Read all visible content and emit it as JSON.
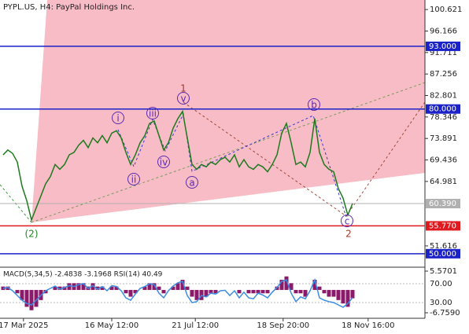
{
  "chart_data": {
    "type": "line",
    "title": "PYPL.US, H4:  PayPal Holdings Inc.",
    "line_color": "#1e7a1e",
    "xlim": [
      -0.667,
      89.333
    ],
    "xticks": [
      {
        "value": 4.3,
        "label": "17 Mar 2025"
      },
      {
        "value": 23,
        "label": "16 May 12:00"
      },
      {
        "value": 40.7,
        "label": "21 Jul 12:00"
      },
      {
        "value": 59.3,
        "label": "18 Sep 20:00"
      },
      {
        "value": 77.3,
        "label": "18 Nov 16:00"
      }
    ],
    "ylim": [
      47.2,
      102.6
    ],
    "yticks": [
      {
        "value": 100.621,
        "label": "100.621"
      },
      {
        "value": 96.166,
        "label": "96.166"
      },
      {
        "value": 91.711,
        "label": "91.711"
      },
      {
        "value": 87.256,
        "label": "87.256"
      },
      {
        "value": 82.801,
        "label": "82.801"
      },
      {
        "value": 78.346,
        "label": "78.346"
      },
      {
        "value": 73.891,
        "label": "73.891"
      },
      {
        "value": 69.436,
        "label": "69.436"
      },
      {
        "value": 64.981,
        "label": "64.981"
      },
      {
        "value": 51.616,
        "label": "51.616"
      }
    ],
    "values": [
      70.5,
      71.5,
      70.8,
      69,
      64,
      61,
      57,
      59.5,
      62,
      64.5,
      66,
      68.5,
      67.5,
      68.5,
      70.5,
      71,
      72.5,
      73.5,
      72,
      74,
      73,
      74.5,
      73,
      75,
      75.5,
      74,
      71,
      68.5,
      70.5,
      73,
      74.5,
      77,
      77.5,
      74.5,
      71.5,
      73,
      76,
      78,
      79.5,
      74,
      68.5,
      67.5,
      68.5,
      68,
      69,
      68.5,
      69.5,
      70,
      69,
      70.5,
      68,
      69.5,
      68,
      67.5,
      68.5,
      68,
      67,
      68.5,
      70.5,
      75,
      77,
      73,
      68.5,
      69,
      68,
      71,
      78,
      71,
      68.5,
      67.5,
      67,
      63.5,
      61.5,
      58,
      60.4
    ],
    "levels": [
      {
        "value": 93.0,
        "label": "93.000",
        "color": "#1a22c8"
      },
      {
        "value": 80.0,
        "label": "80.000",
        "color": "#1a22c8"
      },
      {
        "value": 60.39,
        "label": "60.390",
        "color": "#b0b0b0"
      },
      {
        "value": 55.77,
        "label": "55.770",
        "color": "#e0191e"
      },
      {
        "value": 50.0,
        "label": "50.000",
        "color": "#1a22c8"
      }
    ],
    "wave_labels": [
      "(2)",
      "i",
      "ii",
      "iii",
      "iv",
      "v",
      "1",
      "a",
      "b",
      "c",
      "2"
    ],
    "indicator": {
      "title": "MACD(5,34,5) -2.4838 -3.1968 RSI(14) 40.49",
      "macd_color": "#8b1a6b",
      "rsi_color": "#3a8de0",
      "macd_ylim": [
        -8.39,
        6.73
      ],
      "macd_ticks": [
        {
          "value": 5.5701,
          "label": "5.5701"
        },
        {
          "value": -6.759,
          "label": "-6.7590"
        }
      ],
      "rsi_ylim": [
        -3.3,
        105
      ],
      "rsi_ticks": [
        {
          "value": 70,
          "label": "70.00"
        },
        {
          "value": 30,
          "label": "30.00"
        }
      ],
      "macd": [
        1,
        1,
        0,
        -1,
        -3,
        -5,
        -6,
        -5,
        -3,
        -1,
        0,
        1,
        1,
        1,
        2,
        2,
        2,
        2,
        1,
        2,
        1,
        1,
        0,
        1,
        1,
        0,
        -1,
        -2,
        -1,
        0,
        1,
        2,
        2,
        1,
        -1,
        0,
        1,
        2,
        3,
        1,
        -2,
        -3,
        -3,
        -2,
        -1,
        -1,
        0,
        0,
        0,
        0,
        -1,
        0,
        -1,
        -1,
        -1,
        -1,
        -1,
        0,
        1,
        3,
        4,
        2,
        -1,
        -1,
        -2,
        0,
        3,
        1,
        -1,
        -2,
        -2,
        -3,
        -4,
        -5,
        -2.4838
      ],
      "rsi": [
        60,
        62,
        55,
        45,
        35,
        28,
        25,
        35,
        45,
        55,
        60,
        65,
        58,
        62,
        66,
        64,
        68,
        70,
        60,
        66,
        58,
        64,
        55,
        66,
        64,
        55,
        40,
        35,
        48,
        60,
        64,
        70,
        68,
        50,
        40,
        55,
        65,
        72,
        75,
        45,
        30,
        32,
        45,
        42,
        50,
        48,
        55,
        56,
        45,
        55,
        40,
        52,
        40,
        38,
        50,
        46,
        40,
        52,
        62,
        75,
        78,
        50,
        32,
        42,
        38,
        55,
        78,
        40,
        35,
        32,
        30,
        25,
        20,
        28,
        40.49
      ]
    }
  }
}
